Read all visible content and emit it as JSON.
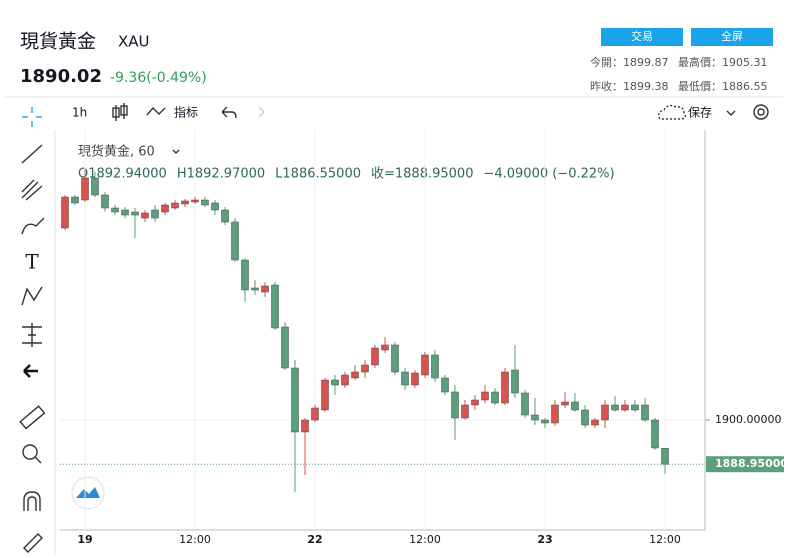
{
  "header": {
    "title": "現貨黃金",
    "symbol": "XAU",
    "price": "1890.02",
    "change": "-9.36(-0.49%)",
    "buttons": [
      "交易",
      "全屏"
    ],
    "stats": [
      "今開：1899.87",
      "最高價：1905.31",
      "昨收：1899.38",
      "最低價：1886.55"
    ]
  },
  "toolbar": {
    "interval": "1h",
    "indicators": "指标",
    "save": "保存"
  },
  "chart_data": {
    "type": "candlestick",
    "legend_title": "現货黄金, 60",
    "legend_values": [
      "O1892.94000",
      "H1892.97000",
      "L1886.55000",
      "收=1888.95000",
      "−4.09000 (−0.22%)"
    ],
    "categories": [
      null,
      null,
      "19",
      null,
      null,
      null,
      null,
      null,
      null,
      null,
      null,
      null,
      null,
      "12:00",
      null,
      null,
      null,
      null,
      null,
      null,
      null,
      null,
      null,
      null,
      null,
      "22",
      null,
      null,
      null,
      null,
      null,
      null,
      null,
      null,
      null,
      null,
      "12:00",
      null,
      null,
      null,
      null,
      null,
      null,
      null,
      null,
      null,
      null,
      null,
      "23",
      null,
      null,
      null,
      null,
      null,
      null,
      null,
      null,
      null,
      null,
      null,
      "12:00"
    ],
    "open": [
      1948,
      1955.75,
      1955,
      1960.5,
      1956.25,
      1953,
      1952.5,
      1952,
      1950.5,
      1952.5,
      1952,
      1953,
      1954,
      1954.5,
      1955,
      1954.25,
      1952.5,
      1949.5,
      1940,
      1933,
      1932,
      1933.75,
      1923.25,
      1913,
      1897,
      1900,
      1902.5,
      1910,
      1908.75,
      1910.5,
      1912,
      1913.75,
      1917.5,
      1918.75,
      1912,
      1908.75,
      1911.25,
      1916.25,
      1910.5,
      1907,
      1900.5,
      1903.75,
      1905,
      1907,
      1904.25,
      1912.5,
      1906.75,
      1901.25,
      1900,
      1899.25,
      1903.75,
      1904.5,
      1902.5,
      1898.75,
      1900,
      1903.75,
      1902.5,
      1903.75,
      1903.75,
      1900,
      1892.94
    ],
    "high": [
      1956.25,
      1956.25,
      1962.5,
      1962,
      1957,
      1953.75,
      1953.25,
      1953,
      1952.5,
      1953.75,
      1954.25,
      1955,
      1955.25,
      1955.75,
      1955.75,
      1955,
      1953.25,
      1950.5,
      1940.5,
      1935,
      1934.5,
      1934.5,
      1924.5,
      1915,
      1900.5,
      1903.75,
      1910.5,
      1911.25,
      1912,
      1913.75,
      1915,
      1918.75,
      1920.75,
      1919.5,
      1913,
      1912.5,
      1917,
      1917.5,
      1911.25,
      1908.75,
      1905,
      1906.25,
      1908.75,
      1908,
      1913,
      1918.75,
      1907.5,
      1905.5,
      1900.5,
      1905,
      1907,
      1906.75,
      1903.75,
      1900.5,
      1905,
      1906,
      1905,
      1905,
      1905.5,
      1900.5,
      1892.97
    ],
    "low": [
      1947.5,
      1953.75,
      1954.5,
      1955.75,
      1952,
      1951.25,
      1950.5,
      1945.5,
      1949.5,
      1949.5,
      1951.25,
      1952.5,
      1953.25,
      1954,
      1953.25,
      1951.25,
      1948.75,
      1939.5,
      1929.5,
      1931.25,
      1930.75,
      1922.5,
      1912.5,
      1882,
      1886.25,
      1899.5,
      1902,
      1906.25,
      1908,
      1910,
      1910.5,
      1913,
      1916.75,
      1911.25,
      1907.5,
      1908,
      1910.5,
      1909.5,
      1906.25,
      1895,
      1900,
      1902.5,
      1904.25,
      1903.75,
      1903.75,
      1905.5,
      1900.5,
      1898.75,
      1898,
      1898.5,
      1903,
      1902,
      1898,
      1898,
      1898,
      1902,
      1902,
      1902,
      1899.5,
      1892.5,
      1886.55
    ],
    "close": [
      1955.75,
      1954.25,
      1960.5,
      1956.25,
      1953,
      1952,
      1951.25,
      1951.25,
      1951.75,
      1950.5,
      1953.75,
      1954.25,
      1954.75,
      1955,
      1953.75,
      1952.5,
      1949.5,
      1940,
      1932.5,
      1932.5,
      1933.5,
      1923,
      1913,
      1897,
      1900,
      1903,
      1910,
      1908.75,
      1911.25,
      1912,
      1913.75,
      1918,
      1918.75,
      1912,
      1908.75,
      1911.75,
      1916.25,
      1910.5,
      1907,
      1900.5,
      1903.75,
      1905,
      1907,
      1904.25,
      1912,
      1906.75,
      1901.25,
      1900,
      1899.25,
      1903.75,
      1904.5,
      1902.5,
      1898.75,
      1900,
      1903.75,
      1902.5,
      1903.75,
      1902.5,
      1900,
      1893,
      1888.95
    ],
    "up_color": "#d9534f",
    "down_color": "#5b9f7d",
    "ylim": [
      1872.5,
      1972.5
    ],
    "yticks": [
      {
        "value": 1900,
        "label": "1900.00000"
      }
    ],
    "last_price": {
      "value": 1888.95,
      "label": "1888.95000"
    }
  }
}
